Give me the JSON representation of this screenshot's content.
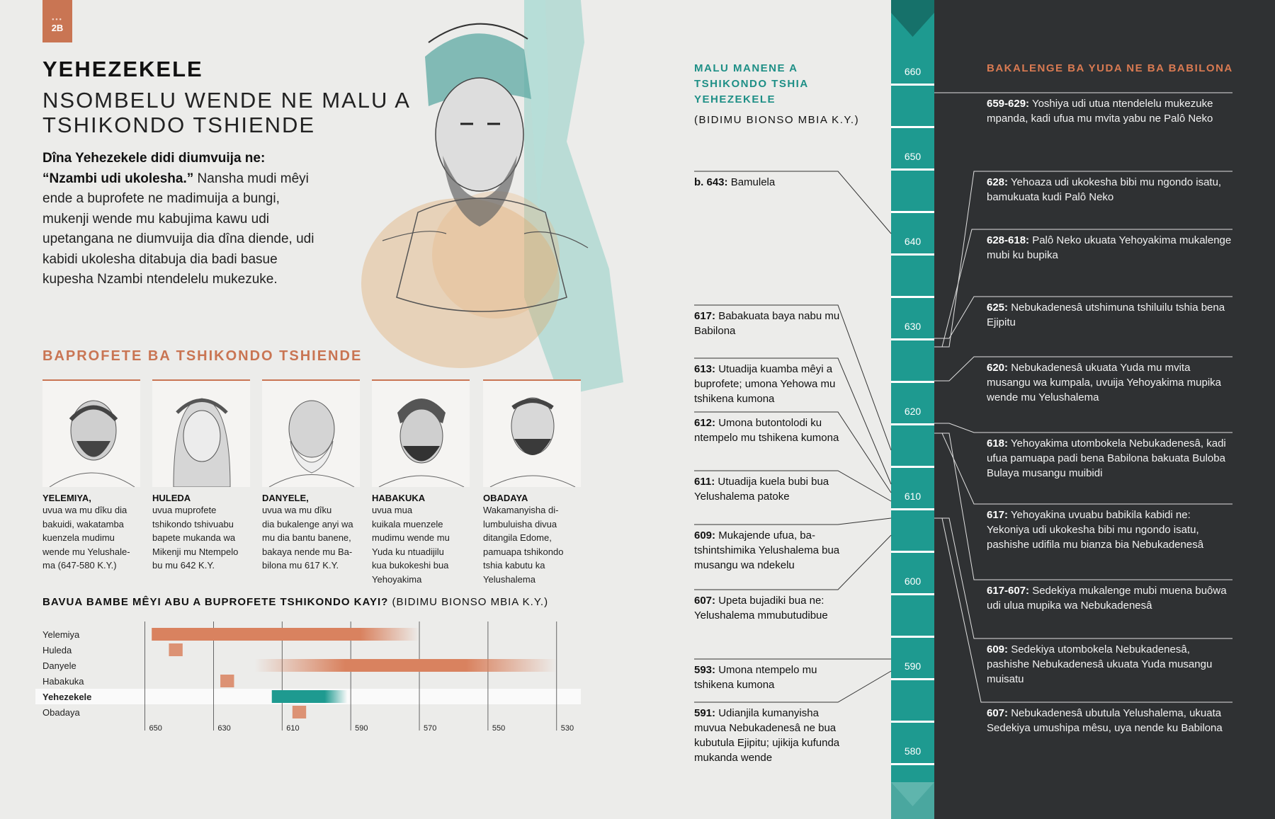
{
  "page_tab": {
    "dots": "•••",
    "label": "2B"
  },
  "header": {
    "title": "YEHEZEKELE",
    "subtitle": "NSOMBELU WENDE NE MALU A TSHIKONDO TSHIENDE"
  },
  "intro": {
    "bold": "Dîna Yehezekele didi diumvuija ne: “Nzambi udi ukolesha.”",
    "text": " Nansha mudi mêyi ende a buprofete ne madimuija a bungi, mukenji wende mu kabujima kawu udi upetangana ne diumvuija dia dîna diende, udi kabidi ukolesha ditabuja dia badi basue kupesha Nzambi ntendelelu mukezuke."
  },
  "prophets": {
    "heading": "BAPROFETE BA TSHIKONDO TSHIENDE",
    "items": [
      {
        "name": "YELEMIYA,",
        "desc": "uvua wa mu dîku dia\nbakuidi, wakatamba\nkuenzela mudimu\nwende mu Yelushale-\nma (647-580 K.Y.)"
      },
      {
        "name": "HULEDA",
        "desc": "uvua muprofete\ntshikondo tshivuabu\nbapete mukanda wa\nMikenji mu Ntempelo\nbu mu 642 K.Y."
      },
      {
        "name": "DANYELE,",
        "desc": "uvua wa mu dîku\ndia bukalenge anyi wa\nmu dia bantu banene,\nbakaya nende mu Ba-\nbilona mu 617 K.Y."
      },
      {
        "name": "HABAKUKA",
        "desc": "uvua mua\nkuikala muenzele\nmudimu wende mu\nYuda ku ntuadijilu\nkua bukokeshi bua\nYehoyakima"
      },
      {
        "name": "OBADAYA",
        "desc": "Wakamanyisha di-\nlumbuluisha divua\nditangila Edome,\npamuapa tshikondo\ntshia kabutu ka\nYelushalema"
      }
    ]
  },
  "overlap": {
    "heading_bold": "BAVUA BAMBE MÊYI ABU A BUPROFETE TSHIKONDO KAYI?",
    "heading_sub": " (BIDIMU BIONSO MBIA K.Y.)"
  },
  "chart_data": {
    "type": "bar",
    "subtype": "horizontal-range",
    "title": "BAVUA BAMBE MÊYI ABU A BUPROFETE TSHIKONDO KAYI? (BIDIMU BIONSO MBIA K.Y.)",
    "xlabel": "",
    "ylabel": "",
    "x_ticks": [
      "650",
      "630",
      "610",
      "590",
      "570",
      "550",
      "530"
    ],
    "xlim": [
      653,
      525
    ],
    "categories": [
      "Yelemiya",
      "Huleda",
      "Danyele",
      "Habakuka",
      "Yehezekele",
      "Obadaya"
    ],
    "highlight": "Yehezekele",
    "ranges": [
      {
        "name": "Yelemiya",
        "start": 648,
        "end": 570,
        "color": "#d9825f"
      },
      {
        "name": "Huleda",
        "start": 643,
        "end": 639,
        "color": "#d9825f"
      },
      {
        "name": "Danyele",
        "start": 618,
        "end": 530,
        "color": "#d9825f"
      },
      {
        "name": "Habakuka",
        "start": 628,
        "end": 624,
        "color": "#d9825f"
      },
      {
        "name": "Yehezekele",
        "start": 613,
        "end": 591,
        "color": "#1e9a90"
      },
      {
        "name": "Obadaya",
        "start": 607,
        "end": 603,
        "color": "#d9825f"
      }
    ]
  },
  "middle": {
    "heading": "MALU MANENE A TSHIKONDO TSHIA YEHEZEKELE",
    "sub": "(BIDIMU BIONSO MBIA K.Y.)",
    "events": [
      {
        "date": "b. 643:",
        "text": " Bamulela"
      },
      {
        "date": "617:",
        "text": " Babakuata baya nabu mu Babilona"
      },
      {
        "date": "613:",
        "text": " Utuadija kuamba mêyi a buprofete; umona Yehowa mu tshikena kumona"
      },
      {
        "date": "612:",
        "text": " Umona butontolodi ku ntempelo mu tshikena kumona"
      },
      {
        "date": "611:",
        "text": " Utuadija kuela bubi bua Yelushalema patoke"
      },
      {
        "date": "609:",
        "text": " Mukajende ufua, ba-tshintshimika Yelushalema bua musangu wa ndekelu"
      },
      {
        "date": "607:",
        "text": " Upeta bujadiki bua ne: Yelushalema mmubutudibue"
      },
      {
        "date": "593:",
        "text": " Umona ntempelo mu tshikena kumona"
      },
      {
        "date": "591:",
        "text": " Udianjila kumanyisha muvua Nebukadenesâ ne bua kubutula Ejipitu; ujikija kufunda mukanda wende"
      }
    ]
  },
  "timeline": {
    "labels": [
      "660",
      "650",
      "640",
      "630",
      "620",
      "610",
      "600",
      "590",
      "580"
    ]
  },
  "right": {
    "heading": "BAKALENGE BA YUDA NE BA BABILONA",
    "events": [
      {
        "date": "659-629:",
        "text": " Yoshiya udi utua ntendelelu mukezuke mpanda, kadi ufua mu mvita yabu ne Palô Neko"
      },
      {
        "date": "628:",
        "text": " Yehoaza udi ukokesha bibi mu ngondo isatu, bamukuata kudi Palô Neko"
      },
      {
        "date": "628-618:",
        "text": " Palô Neko ukuata Yehoyakima mukalenge mubi ku bupika"
      },
      {
        "date": "625:",
        "text": " Nebukadenesâ utshimuna tshiluilu tshia bena Ejipitu"
      },
      {
        "date": "620:",
        "text": " Nebukadenesâ ukuata Yuda mu mvita musangu wa kumpala, uvuija Yehoyakima mupika wende mu Yelushalema"
      },
      {
        "date": "618:",
        "text": " Yehoyakima utombokela Nebukadenesâ, kadi ufua pamuapa padi bena Babilona bakuata Buloba Bulaya musangu muibidi"
      },
      {
        "date": "617:",
        "text": " Yehoyakina uvuabu babikila kabidi ne: Yekoniya udi ukokesha bibi mu ngondo isatu, pashishe udifila mu bianza bia Nebukadenesâ"
      },
      {
        "date": "617-607:",
        "text": " Sedekiya mukalenge mubi muena buôwa udi ulua mupika wa Nebukadenesâ"
      },
      {
        "date": "609:",
        "text": " Sedekiya utombokela Nebukadenesâ, pashishe Nebukadenesâ ukuata Yuda musangu muisatu"
      },
      {
        "date": "607:",
        "text": " Nebukadenesâ ubutula Yelushalema, ukuata Sedekiya umushipa mêsu, uya nende ku Babilona"
      }
    ]
  },
  "colors": {
    "accent_orange": "#c97553",
    "accent_teal": "#1e9a90",
    "dark_panel": "#2f3133",
    "background": "#ececea"
  }
}
